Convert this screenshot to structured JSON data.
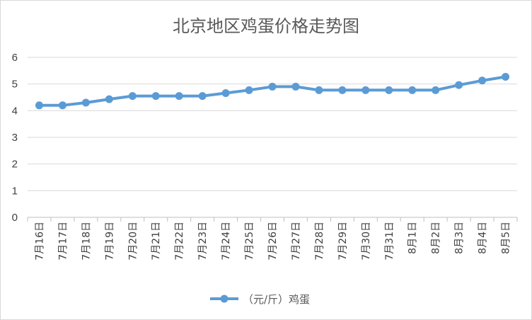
{
  "chart_data": {
    "type": "line",
    "title": "北京地区鸡蛋价格走势图",
    "xlabel": "",
    "ylabel": "",
    "ylim": [
      0,
      6
    ],
    "yticks": [
      "0",
      "1",
      "2",
      "3",
      "4",
      "5",
      "6"
    ],
    "grid": true,
    "legend": "bottom",
    "categories": [
      "7月16日",
      "7月17日",
      "7月18日",
      "7月19日",
      "7月20日",
      "7月21日",
      "7月22日",
      "7月23日",
      "7月24日",
      "7月25日",
      "7月26日",
      "7月27日",
      "7月28日",
      "7月29日",
      "7月30日",
      "7月31日",
      "8月1日",
      "8月2日",
      "8月3日",
      "8月4日",
      "8月5日"
    ],
    "series": [
      {
        "name": "（元/斤）鸡蛋",
        "color": "#5b9bd5",
        "values": [
          4.2,
          4.2,
          4.3,
          4.43,
          4.55,
          4.55,
          4.55,
          4.55,
          4.66,
          4.77,
          4.9,
          4.9,
          4.77,
          4.77,
          4.77,
          4.77,
          4.77,
          4.77,
          4.96,
          5.13,
          5.27
        ]
      }
    ]
  }
}
